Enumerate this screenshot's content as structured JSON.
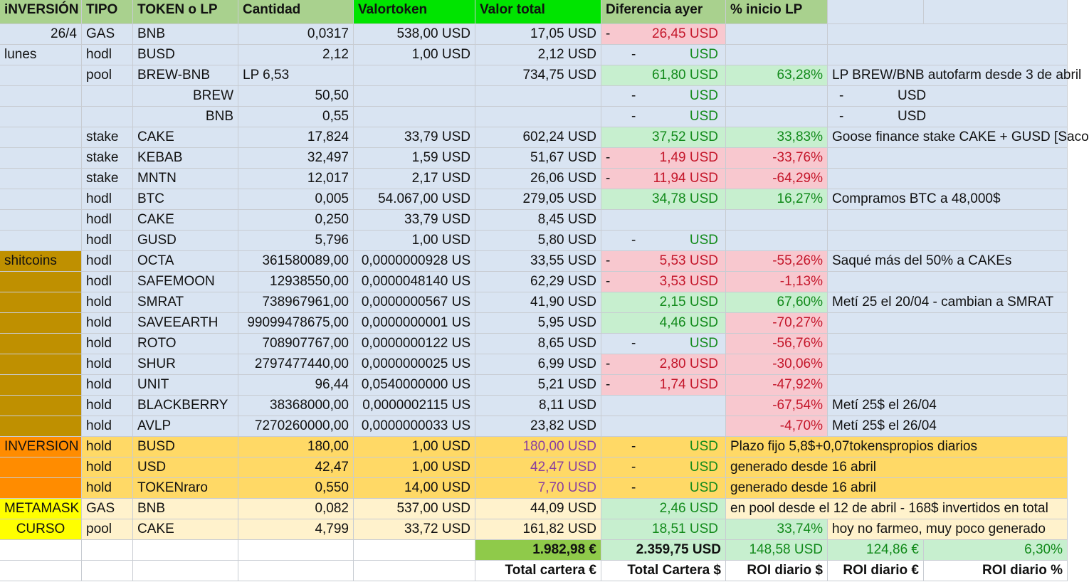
{
  "colors": {
    "light_blue": "#d9e4f2",
    "header_green": "#a9d18e",
    "header_bright_green": "#00e400",
    "red_fill": "#f8c8cf",
    "green_fill": "#c7efcf",
    "shitcoins_fill": "#bf9000",
    "inversion_fill": "#ffd966",
    "inversion_label_fill": "#ff8c00",
    "metamask_row_fill": "#fff2cc",
    "metamask_label_fill": "#ffff00",
    "total_green": "#8fca4a"
  },
  "headers": [
    "iNVERSIÓN",
    "TIPO",
    "TOKEN o LP",
    "Cantidad",
    "Valortoken",
    "Valor total",
    "Diferencia ayer",
    "% inicio LP",
    "",
    ""
  ],
  "rows": [
    {
      "a": "26/4",
      "b": "GAS",
      "c": "BNB",
      "d": "0,0317",
      "e": "538,00 USD",
      "f": "17,05 USD",
      "g_dash": "-",
      "g": "26,45 USD",
      "g_kind": "neg",
      "h": "",
      "h_kind": "",
      "note": ""
    },
    {
      "a": "lunes",
      "b": "hodl",
      "c": "BUSD",
      "d": "2,12",
      "e": "1,00 USD",
      "f": "2,12 USD",
      "g_dash": "-",
      "g": "USD",
      "g_kind": "zero",
      "h": "",
      "h_kind": "",
      "note": ""
    },
    {
      "a": "",
      "b": "pool",
      "c": "BREW-BNB",
      "d": "LP 6,53",
      "e": "",
      "f": "734,75 USD",
      "g_dash": "",
      "g": "61,80 USD",
      "g_kind": "pos",
      "h": "63,28%",
      "h_kind": "pos",
      "note": "LP BREW/BNB autofarm desde 3 de abril"
    },
    {
      "a": "",
      "b": "",
      "c": "BREW",
      "d": "50,50",
      "e": "",
      "f": "",
      "g_dash": "-",
      "g": "USD",
      "g_kind": "zero",
      "h": "",
      "h_kind": "",
      "note": "-",
      "note2": "USD"
    },
    {
      "a": "",
      "b": "",
      "c": "BNB",
      "d": "0,55",
      "e": "",
      "f": "",
      "g_dash": "-",
      "g": "USD",
      "g_kind": "zero",
      "h": "",
      "h_kind": "",
      "note": "-",
      "note2": "USD"
    },
    {
      "a": "",
      "b": "stake",
      "c": "CAKE",
      "d": "17,824",
      "e": "33,79 USD",
      "f": "602,24 USD",
      "g_dash": "",
      "g": "37,52 USD",
      "g_kind": "pos",
      "h": "33,83%",
      "h_kind": "pos",
      "note": "Goose finance stake CAKE + GUSD [Saco"
    },
    {
      "a": "",
      "b": "stake",
      "c": "KEBAB",
      "d": "32,497",
      "e": "1,59 USD",
      "f": "51,67 USD",
      "g_dash": "-",
      "g": "1,49 USD",
      "g_kind": "neg",
      "h": "-33,76%",
      "h_kind": "neg",
      "note": ""
    },
    {
      "a": "",
      "b": "stake",
      "c": "MNTN",
      "d": "12,017",
      "e": "2,17 USD",
      "f": "26,06 USD",
      "g_dash": "-",
      "g": "11,94 USD",
      "g_kind": "neg",
      "h": "-64,29%",
      "h_kind": "neg",
      "note": ""
    },
    {
      "a": "",
      "b": "hodl",
      "c": "BTC",
      "d": "0,005",
      "e": "54.067,00 USD",
      "f": "279,05 USD",
      "g_dash": "",
      "g": "34,78 USD",
      "g_kind": "pos",
      "h": "16,27%",
      "h_kind": "pos",
      "note": "Compramos BTC a 48,000$"
    },
    {
      "a": "",
      "b": "hodl",
      "c": "CAKE",
      "d": "0,250",
      "e": "33,79 USD",
      "f": "8,45 USD",
      "g_dash": "",
      "g": "",
      "g_kind": "",
      "h": "",
      "h_kind": "",
      "note": ""
    },
    {
      "a": "",
      "b": "hodl",
      "c": "GUSD",
      "d": "5,796",
      "e": "1,00 USD",
      "f": "5,80 USD",
      "g_dash": "-",
      "g": "USD",
      "g_kind": "zero",
      "h": "",
      "h_kind": "",
      "note": ""
    },
    {
      "a": "shitcoins",
      "b": "hodl",
      "c": "OCTA",
      "d": "361580089,00",
      "e": "0,0000000928 US",
      "f": "33,55 USD",
      "g_dash": "-",
      "g": "5,53 USD",
      "g_kind": "neg",
      "h": "-55,26%",
      "h_kind": "neg",
      "note": "Saqué más del 50% a CAKEs"
    },
    {
      "a": "",
      "b": "hodl",
      "c": "SAFEMOON",
      "d": "12938550,00",
      "e": "0,0000048140 US",
      "f": "62,29 USD",
      "g_dash": "-",
      "g": "3,53 USD",
      "g_kind": "neg",
      "h": "-1,13%",
      "h_kind": "neg",
      "note": ""
    },
    {
      "a": "",
      "b": "hold",
      "c": "SMRAT",
      "d": "738967961,00",
      "e": "0,0000000567 US",
      "f": "41,90 USD",
      "g_dash": "",
      "g": "2,15 USD",
      "g_kind": "pos",
      "h": "67,60%",
      "h_kind": "pos",
      "note": "Metí 25 el 20/04 - cambian a SMRAT"
    },
    {
      "a": "",
      "b": "hold",
      "c": "SAVEEARTH",
      "d": "99099478675,00",
      "e": "0,0000000001 US",
      "f": "5,95 USD",
      "g_dash": "",
      "g": "4,46 USD",
      "g_kind": "pos",
      "h": "-70,27%",
      "h_kind": "neg",
      "note": ""
    },
    {
      "a": "",
      "b": "hold",
      "c": "ROTO",
      "d": "708907767,00",
      "e": "0,0000000122 US",
      "f": "8,65 USD",
      "g_dash": "-",
      "g": "USD",
      "g_kind": "zero",
      "h": "-56,76%",
      "h_kind": "neg",
      "note": ""
    },
    {
      "a": "",
      "b": "hold",
      "c": "SHUR",
      "d": "2797477440,00",
      "e": "0,0000000025 US",
      "f": "6,99 USD",
      "g_dash": "-",
      "g": "2,80 USD",
      "g_kind": "neg",
      "h": "-30,06%",
      "h_kind": "neg",
      "note": ""
    },
    {
      "a": "",
      "b": "hold",
      "c": "UNIT",
      "d": "96,44",
      "e": "0,0540000000 US",
      "f": "5,21 USD",
      "g_dash": "-",
      "g": "1,74 USD",
      "g_kind": "neg",
      "h": "-47,92%",
      "h_kind": "neg",
      "note": ""
    },
    {
      "a": "",
      "b": "hold",
      "c": "BLACKBERRY",
      "d": "38368000,00",
      "e": "0,0000002115 US",
      "f": "8,11 USD",
      "g_dash": "",
      "g": "",
      "g_kind": "",
      "h": "-67,54%",
      "h_kind": "neg",
      "note": "Metí 25$ el 26/04"
    },
    {
      "a": "",
      "b": "hold",
      "c": "AVLP",
      "d": "7270260000,00",
      "e": "0,0000000033 US",
      "f": "23,82 USD",
      "g_dash": "",
      "g": "",
      "g_kind": "",
      "h": "-4,70%",
      "h_kind": "neg",
      "note": "Metí 25$ el 26/04"
    },
    {
      "a": "INVERSION",
      "b": "hold",
      "c": "BUSD",
      "d": "180,00",
      "e": "1,00 USD",
      "f": "180,00 USD",
      "g_dash": "-",
      "g": "USD",
      "g_kind": "zero",
      "h": "Plazo fijo 5,8$+0,07tokenspropios diarios",
      "h_kind": "wide",
      "note": ""
    },
    {
      "a": "",
      "b": "hold",
      "c": "USD",
      "d": "42,47",
      "e": "1,00 USD",
      "f": "42,47 USD",
      "g_dash": "-",
      "g": "USD",
      "g_kind": "zero",
      "h": "generado desde 16 abril",
      "h_kind": "wide",
      "note": ""
    },
    {
      "a": "",
      "b": "hold",
      "c": "TOKENraro",
      "d": "0,550",
      "e": "14,00 USD",
      "f": "7,70 USD",
      "g_dash": "-",
      "g": "USD",
      "g_kind": "zero",
      "h": "generado desde 16 abril",
      "h_kind": "wide",
      "note": ""
    },
    {
      "a": "METAMASK",
      "b": "GAS",
      "c": "BNB",
      "d": "0,082",
      "e": "537,00 USD",
      "f": "44,09 USD",
      "g_dash": "",
      "g": "2,46 USD",
      "g_kind": "pos",
      "h": "en pool desde el 12 de abril - 168$ invertidos en total",
      "h_kind": "wide",
      "note": ""
    },
    {
      "a": "CURSO",
      "b": "pool",
      "c": "CAKE",
      "d": "4,799",
      "e": "33,72 USD",
      "f": "161,82 USD",
      "g_dash": "",
      "g": "18,51 USD",
      "g_kind": "pos",
      "h": "33,74%",
      "h_kind": "pos",
      "note": "hoy no farmeo, muy poco generado"
    }
  ],
  "totals": {
    "eur": "1.982,98 €",
    "usd": "2.359,75 USD",
    "roi_usd": "148,58 USD",
    "roi_eur": "124,86 €",
    "roi_pct": "6,30%"
  },
  "total_labels": [
    "Total cartera €",
    "Total Cartera $",
    "ROI diario $",
    "ROI diario €",
    "ROI diario %"
  ]
}
